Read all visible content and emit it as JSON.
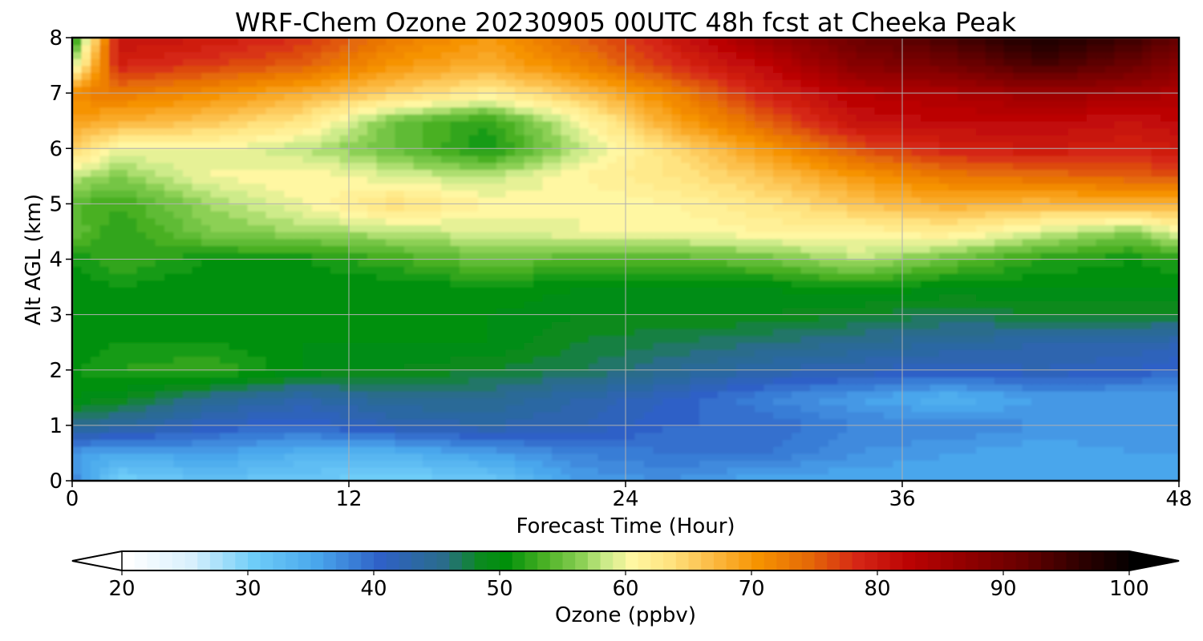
{
  "chart_data": {
    "type": "heatmap",
    "title": "WRF-Chem Ozone  20230905 00UTC 48h fcst at Cheeka Peak",
    "xlabel": "Forecast Time (Hour)",
    "ylabel": "Alt AGL (km)",
    "xlim": [
      0,
      48
    ],
    "ylim": [
      0,
      8
    ],
    "x_ticks": [
      "0",
      "12",
      "24",
      "36",
      "48"
    ],
    "y_ticks": [
      "0",
      "1",
      "2",
      "3",
      "4",
      "5",
      "6",
      "7",
      "8"
    ],
    "grid": true,
    "x_hours": [
      0,
      2,
      6,
      10,
      14,
      18,
      22,
      26,
      30,
      34,
      38,
      42,
      46,
      48
    ],
    "y_km": [
      0,
      0.5,
      1,
      1.5,
      2,
      2.5,
      3,
      3.5,
      4,
      4.5,
      5,
      5.5,
      6,
      6.5,
      7,
      7.5,
      8
    ],
    "ozone_ppbv": [
      [
        38,
        30,
        32,
        31,
        30,
        31,
        36,
        37,
        35,
        35,
        35,
        35,
        35,
        35
      ],
      [
        36,
        35,
        36,
        34,
        34,
        36,
        38,
        39,
        39,
        37,
        36,
        35,
        36,
        36
      ],
      [
        45,
        44,
        41,
        40,
        42,
        43,
        42,
        40,
        40,
        38,
        38,
        37,
        37,
        37
      ],
      [
        50,
        49,
        45,
        43,
        45,
        45,
        43,
        41,
        38,
        36,
        34,
        36,
        36,
        36
      ],
      [
        51,
        52,
        53,
        50,
        49,
        48,
        47,
        45,
        43,
        42,
        41,
        42,
        41,
        40
      ],
      [
        50,
        51,
        51,
        50,
        50,
        50,
        48,
        47,
        46,
        45,
        44,
        43,
        43,
        42
      ],
      [
        50,
        51,
        50,
        50,
        50,
        50,
        49,
        49,
        49,
        48,
        47,
        48,
        48,
        48
      ],
      [
        50,
        51,
        50,
        50,
        50,
        51,
        50,
        50,
        50,
        51,
        50,
        50,
        50,
        50
      ],
      [
        51,
        53,
        51,
        51,
        53,
        55,
        54,
        54,
        55,
        58,
        55,
        52,
        51,
        52
      ],
      [
        55,
        52,
        56,
        57,
        58,
        59,
        60,
        60,
        61,
        61,
        62,
        59,
        56,
        60
      ],
      [
        54,
        53,
        57,
        60,
        64,
        61,
        60,
        61,
        63,
        66,
        68,
        67,
        68,
        68
      ],
      [
        58,
        56,
        60,
        61,
        59,
        58,
        61,
        63,
        66,
        70,
        73,
        74,
        75,
        76
      ],
      [
        65,
        60,
        60,
        58,
        55,
        51,
        58,
        64,
        70,
        76,
        79,
        80,
        79,
        80
      ],
      [
        69,
        68,
        66,
        63,
        55,
        52,
        60,
        69,
        75,
        81,
        82,
        82,
        81,
        82
      ],
      [
        72,
        73,
        71,
        68,
        65,
        62,
        66,
        72,
        79,
        83,
        84,
        86,
        85,
        84
      ],
      [
        58,
        79,
        77,
        75,
        70,
        68,
        72,
        78,
        82,
        88,
        90,
        94,
        91,
        88
      ],
      [
        50,
        81,
        80,
        78,
        73,
        70,
        75,
        80,
        86,
        91,
        94,
        98,
        95,
        92
      ]
    ],
    "colorbar": {
      "label": "Ozone  (ppbv)",
      "min": 20,
      "max": 100,
      "step": 1,
      "extend": "both",
      "ticks": [
        "20",
        "30",
        "40",
        "50",
        "60",
        "70",
        "80",
        "90",
        "100"
      ],
      "color_stops": [
        [
          20,
          "#ffffff"
        ],
        [
          25,
          "#d8f0fd"
        ],
        [
          30,
          "#6ecdf8"
        ],
        [
          35,
          "#49a6ec"
        ],
        [
          40,
          "#2f61c7"
        ],
        [
          45,
          "#2a6c8b"
        ],
        [
          48,
          "#0b8a1f"
        ],
        [
          50,
          "#00900a"
        ],
        [
          53,
          "#48b024"
        ],
        [
          56,
          "#8cd055"
        ],
        [
          58,
          "#cdeb8a"
        ],
        [
          60,
          "#fff7a2"
        ],
        [
          63,
          "#ffe380"
        ],
        [
          66,
          "#fcbf4b"
        ],
        [
          70,
          "#f69300"
        ],
        [
          74,
          "#e56a07"
        ],
        [
          78,
          "#d52515"
        ],
        [
          82,
          "#bb0303"
        ],
        [
          86,
          "#960000"
        ],
        [
          91,
          "#680000"
        ],
        [
          96,
          "#2a0000"
        ],
        [
          100,
          "#000000"
        ]
      ]
    }
  }
}
